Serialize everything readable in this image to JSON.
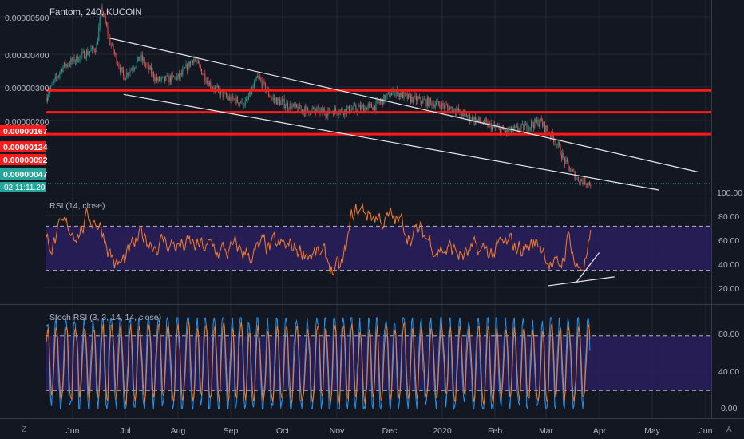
{
  "colors": {
    "background": "#131722",
    "grid": "#262a36",
    "axis_text": "#b2b5be",
    "candle_up": "#26a69a",
    "candle_down": "#ef5350",
    "candle_mix": "#7d9ea0",
    "red_line": "#ff1a1a",
    "trend": "#e8e8e8",
    "rsi_line": "#f57c2c",
    "stoch_k": "#2196f3",
    "stoch_d": "#f57c2c",
    "band_fill": "#2a1f5e",
    "price_tag": "#26a69a"
  },
  "price_pane": {
    "title": "Fantom, 240, KUCOIN",
    "y_ticks": [
      "0.00000500",
      "0.00000400",
      "0.00000300",
      "0.00000200"
    ],
    "levels": [
      {
        "label": "0.00000167",
        "value": 1.67e-06
      },
      {
        "label": "0.00000124",
        "value": 1.24e-06
      },
      {
        "label": "0.00000092",
        "value": 9.2e-07
      }
    ],
    "last_price": "0.00000047",
    "countdown": "02:11:11.20"
  },
  "rsi_pane": {
    "title": "RSI (14, close)",
    "y_ticks": [
      "100.00",
      "80.00",
      "60.00",
      "40.00",
      "20.00"
    ],
    "upper": 70,
    "lower": 30
  },
  "stoch_pane": {
    "title": "Stoch RSI (3, 3, 14, 14, close)",
    "y_ticks": [
      "80.00",
      "40.00",
      "0.00"
    ],
    "upper": 80,
    "lower": 20
  },
  "time_axis": {
    "labels": [
      "Jun",
      "Jul",
      "Aug",
      "Sep",
      "Oct",
      "Nov",
      "Dec",
      "2020",
      "Feb",
      "Mar",
      "Apr",
      "May",
      "Jun"
    ]
  },
  "footer": {
    "left_icon": "Z",
    "right_icon": "A"
  },
  "chart_data": {
    "type": "candlestick",
    "title": "Fantom, 240, KUCOIN",
    "y_scale": "log",
    "x_range": [
      "2019-05-10",
      "2020-06-05"
    ],
    "y_range": [
      4.3e-07,
      5.6e-06
    ],
    "horizontal_levels": [
      1.67e-06,
      1.24e-06,
      9.2e-07
    ],
    "last_price": 4.7e-07,
    "price_path": [
      {
        "x": "2019-05-10",
        "y": 1.5e-06
      },
      {
        "x": "2019-05-20",
        "y": 2.3e-06
      },
      {
        "x": "2019-06-01",
        "y": 2.7e-06
      },
      {
        "x": "2019-06-09",
        "y": 3e-06
      },
      {
        "x": "2019-06-12",
        "y": 5.2e-06
      },
      {
        "x": "2019-06-17",
        "y": 3.2e-06
      },
      {
        "x": "2019-06-25",
        "y": 2e-06
      },
      {
        "x": "2019-07-05",
        "y": 2.6e-06
      },
      {
        "x": "2019-07-15",
        "y": 1.9e-06
      },
      {
        "x": "2019-07-28",
        "y": 2e-06
      },
      {
        "x": "2019-08-05",
        "y": 2.6e-06
      },
      {
        "x": "2019-08-15",
        "y": 1.8e-06
      },
      {
        "x": "2019-08-25",
        "y": 1.5e-06
      },
      {
        "x": "2019-09-05",
        "y": 1.4e-06
      },
      {
        "x": "2019-09-12",
        "y": 2e-06
      },
      {
        "x": "2019-09-20",
        "y": 1.5e-06
      },
      {
        "x": "2019-10-05",
        "y": 1.3e-06
      },
      {
        "x": "2019-10-20",
        "y": 1.25e-06
      },
      {
        "x": "2019-11-05",
        "y": 1.28e-06
      },
      {
        "x": "2019-11-20",
        "y": 1.35e-06
      },
      {
        "x": "2019-12-01",
        "y": 1.65e-06
      },
      {
        "x": "2019-12-10",
        "y": 1.5e-06
      },
      {
        "x": "2019-12-25",
        "y": 1.4e-06
      },
      {
        "x": "2020-01-05",
        "y": 1.3e-06
      },
      {
        "x": "2020-01-15",
        "y": 1.15e-06
      },
      {
        "x": "2020-01-25",
        "y": 1.05e-06
      },
      {
        "x": "2020-02-05",
        "y": 9.5e-07
      },
      {
        "x": "2020-02-15",
        "y": 1e-06
      },
      {
        "x": "2020-02-25",
        "y": 1.1e-06
      },
      {
        "x": "2020-03-05",
        "y": 8.5e-07
      },
      {
        "x": "2020-03-12",
        "y": 6e-07
      },
      {
        "x": "2020-03-18",
        "y": 5e-07
      },
      {
        "x": "2020-03-26",
        "y": 4.7e-07
      }
    ],
    "trend_lines": [
      {
        "name": "upper",
        "from": {
          "x": "2019-06-17",
          "y": 3.4e-06
        },
        "to": {
          "x": "2020-05-28",
          "y": 5.5e-07
        }
      },
      {
        "name": "lower",
        "from": {
          "x": "2019-06-25",
          "y": 1.58e-06
        },
        "to": {
          "x": "2020-05-05",
          "y": 4.3e-07
        }
      }
    ],
    "rsi": {
      "range": [
        0,
        100
      ],
      "bands": [
        30,
        70
      ],
      "anchors": [
        {
          "x": "2019-05-10",
          "y": 55
        },
        {
          "x": "2019-06-08",
          "y": 80
        },
        {
          "x": "2019-06-20",
          "y": 28
        },
        {
          "x": "2019-07-05",
          "y": 60
        },
        {
          "x": "2019-08-01",
          "y": 50
        },
        {
          "x": "2019-09-01",
          "y": 45
        },
        {
          "x": "2019-10-10",
          "y": 50
        },
        {
          "x": "2019-10-30",
          "y": 24
        },
        {
          "x": "2019-11-06",
          "y": 88
        },
        {
          "x": "2019-12-01",
          "y": 72
        },
        {
          "x": "2020-01-10",
          "y": 42
        },
        {
          "x": "2020-02-25",
          "y": 55
        },
        {
          "x": "2020-03-06",
          "y": 22
        },
        {
          "x": "2020-03-12",
          "y": 72
        },
        {
          "x": "2020-03-17",
          "y": 20
        },
        {
          "x": "2020-03-26",
          "y": 65
        }
      ],
      "trend_lines": [
        {
          "from": {
            "x": "2020-03-01",
            "y": 16
          },
          "to": {
            "x": "2020-04-09",
            "y": 24
          }
        },
        {
          "from": {
            "x": "2020-03-17",
            "y": 18
          },
          "to": {
            "x": "2020-03-31",
            "y": 46
          }
        }
      ]
    },
    "stoch_rsi": {
      "range": [
        0,
        100
      ],
      "bands": [
        20,
        80
      ],
      "series": [
        "K",
        "D"
      ]
    }
  }
}
